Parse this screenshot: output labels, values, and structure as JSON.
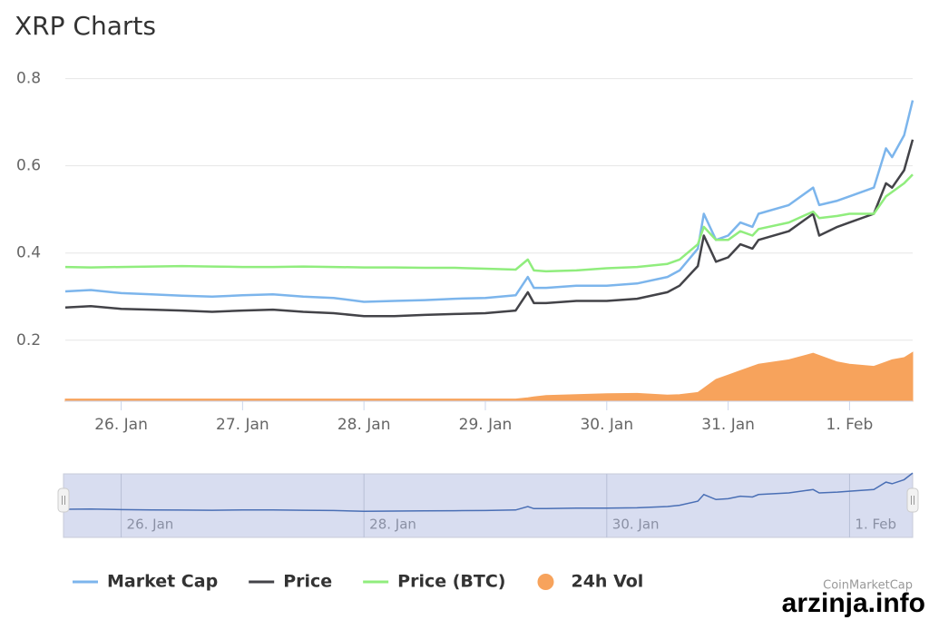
{
  "chart_data": {
    "type": "line",
    "title": "XRP Charts",
    "xlim": [
      25.54,
      32.52
    ],
    "xticks": [
      {
        "value": 26,
        "label": "26. Jan"
      },
      {
        "value": 27,
        "label": "27. Jan"
      },
      {
        "value": 28,
        "label": "28. Jan"
      },
      {
        "value": 29,
        "label": "29. Jan"
      },
      {
        "value": 30,
        "label": "30. Jan"
      },
      {
        "value": 31,
        "label": "31. Jan"
      },
      {
        "value": 32,
        "label": "1. Feb"
      }
    ],
    "ylim": [
      0.06,
      0.82
    ],
    "yticks": [
      0.2,
      0.4,
      0.6,
      0.8
    ],
    "grid": true,
    "legend": "bottom",
    "x": [
      25.54,
      25.75,
      26,
      26.25,
      26.5,
      26.75,
      27,
      27.25,
      27.5,
      27.75,
      28,
      28.25,
      28.5,
      28.75,
      29,
      29.25,
      29.35,
      29.4,
      29.5,
      29.75,
      30,
      30.25,
      30.5,
      30.6,
      30.75,
      30.8,
      30.9,
      31,
      31.1,
      31.2,
      31.25,
      31.5,
      31.7,
      31.75,
      31.9,
      32,
      32.2,
      32.3,
      32.35,
      32.45,
      32.52
    ],
    "series": [
      {
        "name": "Market Cap",
        "color": "#7cb5ec",
        "type": "line",
        "values": [
          0.312,
          0.315,
          0.308,
          0.305,
          0.302,
          0.3,
          0.303,
          0.305,
          0.3,
          0.297,
          0.288,
          0.29,
          0.292,
          0.295,
          0.297,
          0.303,
          0.345,
          0.32,
          0.32,
          0.325,
          0.325,
          0.33,
          0.345,
          0.36,
          0.41,
          0.49,
          0.43,
          0.44,
          0.47,
          0.46,
          0.49,
          0.51,
          0.55,
          0.51,
          0.52,
          0.53,
          0.55,
          0.64,
          0.62,
          0.67,
          0.75
        ]
      },
      {
        "name": "Price",
        "color": "#434348",
        "type": "line",
        "values": [
          0.275,
          0.278,
          0.272,
          0.27,
          0.268,
          0.265,
          0.268,
          0.27,
          0.265,
          0.262,
          0.255,
          0.255,
          0.258,
          0.26,
          0.262,
          0.268,
          0.31,
          0.285,
          0.285,
          0.29,
          0.29,
          0.295,
          0.31,
          0.325,
          0.37,
          0.44,
          0.38,
          0.39,
          0.42,
          0.41,
          0.43,
          0.45,
          0.49,
          0.44,
          0.46,
          0.47,
          0.49,
          0.56,
          0.55,
          0.59,
          0.66
        ]
      },
      {
        "name": "Price (BTC)",
        "color": "#90ed7d",
        "type": "line",
        "values": [
          0.368,
          0.367,
          0.368,
          0.369,
          0.37,
          0.369,
          0.368,
          0.368,
          0.369,
          0.368,
          0.367,
          0.367,
          0.366,
          0.366,
          0.364,
          0.362,
          0.385,
          0.36,
          0.358,
          0.36,
          0.365,
          0.368,
          0.375,
          0.385,
          0.42,
          0.46,
          0.43,
          0.43,
          0.45,
          0.44,
          0.455,
          0.47,
          0.495,
          0.48,
          0.485,
          0.49,
          0.49,
          0.53,
          0.54,
          0.56,
          0.58
        ]
      },
      {
        "name": "24h Vol",
        "color": "#f7a35c",
        "type": "area",
        "values": [
          0.065,
          0.065,
          0.065,
          0.065,
          0.065,
          0.065,
          0.065,
          0.065,
          0.065,
          0.065,
          0.065,
          0.065,
          0.065,
          0.065,
          0.065,
          0.065,
          0.068,
          0.07,
          0.073,
          0.075,
          0.077,
          0.078,
          0.074,
          0.075,
          0.08,
          0.09,
          0.11,
          0.12,
          0.13,
          0.14,
          0.145,
          0.155,
          0.17,
          0.165,
          0.15,
          0.145,
          0.14,
          0.15,
          0.155,
          0.16,
          0.172
        ]
      }
    ],
    "credit": "CoinMarketCap",
    "watermark": "arzinja.info"
  }
}
